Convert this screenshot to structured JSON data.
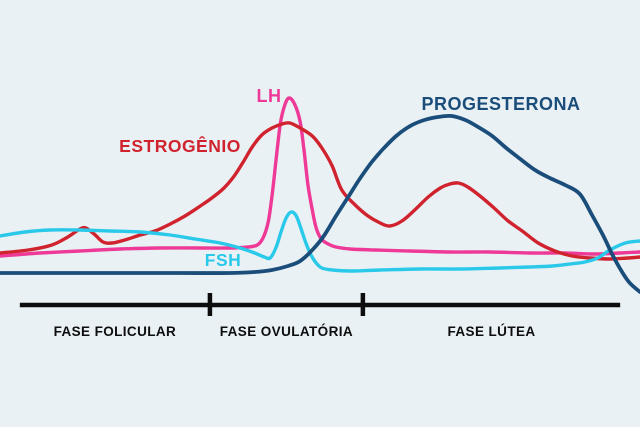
{
  "chart_data": {
    "type": "line",
    "background_color": "#e9f1f5",
    "grid": false,
    "axis_color": "#0d0d0d",
    "x_units": "position in cycle, percent of timeline (0-100)",
    "y_units": "relative hormone level (0-100)",
    "series": [
      {
        "name": "LH",
        "color": "#ee3a96",
        "stroke_width": 3.4,
        "points": [
          [
            0,
            18
          ],
          [
            6.3,
            19.5
          ],
          [
            12.5,
            20.5
          ],
          [
            18.8,
            21.5
          ],
          [
            25,
            22
          ],
          [
            31.3,
            22
          ],
          [
            35.9,
            22
          ],
          [
            38.8,
            22.5
          ],
          [
            40.2,
            23.5
          ],
          [
            41.1,
            27
          ],
          [
            41.9,
            35
          ],
          [
            42.5,
            48
          ],
          [
            43.1,
            65
          ],
          [
            43.8,
            84
          ],
          [
            44.5,
            93.5
          ],
          [
            45.2,
            97
          ],
          [
            46.1,
            93.5
          ],
          [
            46.9,
            85
          ],
          [
            47.5,
            71
          ],
          [
            48.1,
            54
          ],
          [
            48.8,
            41
          ],
          [
            49.4,
            32
          ],
          [
            50.2,
            26.5
          ],
          [
            51.3,
            24
          ],
          [
            52.5,
            22.5
          ],
          [
            54.7,
            21.5
          ],
          [
            58.6,
            21
          ],
          [
            64.1,
            20.5
          ],
          [
            70.3,
            20
          ],
          [
            76.6,
            20
          ],
          [
            82.8,
            19.5
          ],
          [
            88.3,
            19.5
          ],
          [
            93,
            19
          ],
          [
            96.9,
            19.5
          ],
          [
            100,
            20
          ]
        ]
      },
      {
        "name": "ESTROGÊNIO",
        "color": "#d0232e",
        "stroke_width": 3.4,
        "points": [
          [
            0,
            19.5
          ],
          [
            4.4,
            21
          ],
          [
            8.1,
            23.5
          ],
          [
            10.6,
            27.5
          ],
          [
            12.5,
            31.5
          ],
          [
            13.4,
            32
          ],
          [
            14.7,
            29
          ],
          [
            16.1,
            25
          ],
          [
            17.5,
            24.5
          ],
          [
            19.5,
            26
          ],
          [
            21.9,
            28.5
          ],
          [
            24.2,
            30.5
          ],
          [
            26.6,
            34
          ],
          [
            28.9,
            38
          ],
          [
            31.3,
            43
          ],
          [
            33.1,
            47
          ],
          [
            35,
            52
          ],
          [
            36.6,
            58
          ],
          [
            38,
            65
          ],
          [
            39.4,
            72.5
          ],
          [
            40.9,
            78.5
          ],
          [
            42.5,
            82
          ],
          [
            44.1,
            84
          ],
          [
            45.3,
            84.5
          ],
          [
            46.9,
            82
          ],
          [
            48.8,
            78
          ],
          [
            50.3,
            72
          ],
          [
            51.9,
            63
          ],
          [
            53.4,
            51
          ],
          [
            55.5,
            43.5
          ],
          [
            57.5,
            38
          ],
          [
            59.4,
            34.5
          ],
          [
            60.9,
            33
          ],
          [
            62.8,
            35.5
          ],
          [
            64.8,
            41
          ],
          [
            66.9,
            47.5
          ],
          [
            68.8,
            52
          ],
          [
            70.3,
            54
          ],
          [
            71.6,
            54.5
          ],
          [
            73.1,
            52.5
          ],
          [
            75,
            48
          ],
          [
            77.2,
            42
          ],
          [
            79.4,
            35.5
          ],
          [
            81.6,
            30.5
          ],
          [
            84.1,
            24.5
          ],
          [
            86.7,
            20.5
          ],
          [
            89.4,
            18
          ],
          [
            92.2,
            17
          ],
          [
            95.3,
            16.5
          ],
          [
            98.1,
            17
          ],
          [
            100,
            17.5
          ]
        ]
      },
      {
        "name": "FSH",
        "color": "#2ac9ea",
        "stroke_width": 3.4,
        "points": [
          [
            0,
            28
          ],
          [
            3.9,
            30
          ],
          [
            7.8,
            31
          ],
          [
            12.5,
            31
          ],
          [
            17.2,
            30.5
          ],
          [
            21.9,
            30
          ],
          [
            26.6,
            28.5
          ],
          [
            30.5,
            26.5
          ],
          [
            34.4,
            24.5
          ],
          [
            37.5,
            22
          ],
          [
            39.8,
            19.5
          ],
          [
            41.3,
            17.5
          ],
          [
            42.2,
            17
          ],
          [
            43.1,
            22
          ],
          [
            43.9,
            30
          ],
          [
            44.7,
            37
          ],
          [
            45.5,
            40
          ],
          [
            46.3,
            38
          ],
          [
            47,
            32
          ],
          [
            47.8,
            24.5
          ],
          [
            48.6,
            18.5
          ],
          [
            49.4,
            14.5
          ],
          [
            50.3,
            12
          ],
          [
            51.9,
            11
          ],
          [
            54.7,
            10.5
          ],
          [
            59.4,
            11
          ],
          [
            65.6,
            11.5
          ],
          [
            71.9,
            11.5
          ],
          [
            78.1,
            12
          ],
          [
            82.8,
            12.5
          ],
          [
            86.3,
            13
          ],
          [
            89.1,
            14
          ],
          [
            91.4,
            15
          ],
          [
            93.4,
            17
          ],
          [
            95.3,
            21
          ],
          [
            97.7,
            24.5
          ],
          [
            100,
            25.5
          ]
        ]
      },
      {
        "name": "PROGESTERONA",
        "color": "#1b4d7a",
        "stroke_width": 3.8,
        "points": [
          [
            0,
            9.5
          ],
          [
            9.4,
            9.5
          ],
          [
            18.8,
            9.5
          ],
          [
            28.1,
            9.5
          ],
          [
            35.9,
            9.5
          ],
          [
            39.8,
            10
          ],
          [
            42.5,
            11
          ],
          [
            45,
            13
          ],
          [
            46.9,
            15.5
          ],
          [
            48.8,
            21
          ],
          [
            50.6,
            28
          ],
          [
            52.5,
            38
          ],
          [
            54.4,
            47.5
          ],
          [
            56.3,
            57
          ],
          [
            58.1,
            65
          ],
          [
            60,
            72
          ],
          [
            61.9,
            78
          ],
          [
            64.1,
            83
          ],
          [
            66.3,
            86
          ],
          [
            68.4,
            87.5
          ],
          [
            70.6,
            88
          ],
          [
            72.7,
            86
          ],
          [
            74.7,
            82.5
          ],
          [
            76.9,
            78
          ],
          [
            79.1,
            72
          ],
          [
            81.3,
            66.5
          ],
          [
            83.6,
            61
          ],
          [
            85.9,
            57
          ],
          [
            88.3,
            53.5
          ],
          [
            90.6,
            49
          ],
          [
            92.5,
            38.5
          ],
          [
            94.2,
            28.5
          ],
          [
            95.8,
            18
          ],
          [
            97.2,
            10
          ],
          [
            98.4,
            4.5
          ],
          [
            100,
            0
          ]
        ]
      }
    ],
    "phases": [
      {
        "label": "FASE FOLICULAR",
        "from": 3.1,
        "to": 32.8
      },
      {
        "label": "FASE OVULATÓRIA",
        "from": 32.8,
        "to": 56.7
      },
      {
        "label": "FASE LÚTEA",
        "from": 56.7,
        "to": 96.9
      }
    ]
  }
}
